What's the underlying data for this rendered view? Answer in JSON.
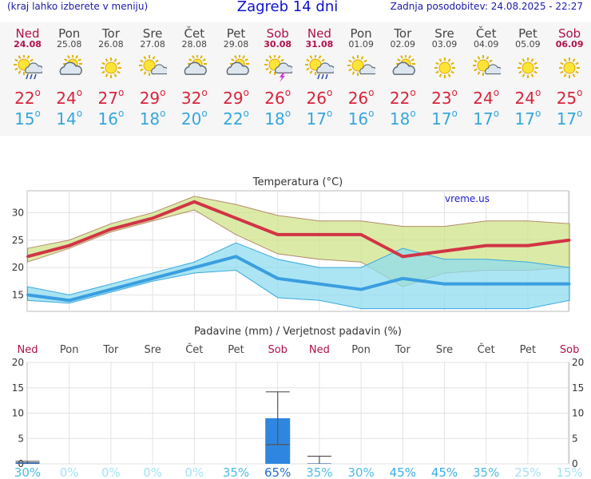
{
  "header": {
    "menu_hint": "(kraj lahko izberete v meniju)",
    "title": "Zagreb 14 dni",
    "updated": "Zadnja posodobitev: 24.08.2025 - 22:27"
  },
  "colors": {
    "max_line": "#d23446",
    "max_band": "#cfe48a",
    "min_line": "#3a9ee0",
    "min_band": "#8fdcef",
    "precip_bar": "#2f86e0",
    "weekend": "#b0104a"
  },
  "days": [
    {
      "name": "Ned",
      "date": "24.08",
      "weekend": true,
      "icon": "sun-cloud-rain-icon",
      "tmax": "22",
      "tmin": "15"
    },
    {
      "name": "Pon",
      "date": "25.08",
      "weekend": false,
      "icon": "cloud-sun-icon",
      "tmax": "24",
      "tmin": "14"
    },
    {
      "name": "Tor",
      "date": "26.08",
      "weekend": false,
      "icon": "sun-icon",
      "tmax": "27",
      "tmin": "16"
    },
    {
      "name": "Sre",
      "date": "27.08",
      "weekend": false,
      "icon": "sun-cloud-icon",
      "tmax": "29",
      "tmin": "18"
    },
    {
      "name": "Čet",
      "date": "28.08",
      "weekend": false,
      "icon": "cloud-sun-icon",
      "tmax": "32",
      "tmin": "20"
    },
    {
      "name": "Pet",
      "date": "29.08",
      "weekend": false,
      "icon": "cloud-sun-icon",
      "tmax": "29",
      "tmin": "22"
    },
    {
      "name": "Sob",
      "date": "30.08",
      "weekend": true,
      "icon": "sun-thunder-icon",
      "tmax": "26",
      "tmin": "18"
    },
    {
      "name": "Ned",
      "date": "31.08",
      "weekend": true,
      "icon": "sun-cloud-rain-icon",
      "tmax": "26",
      "tmin": "17"
    },
    {
      "name": "Pon",
      "date": "01.09",
      "weekend": false,
      "icon": "sun-cloud-icon",
      "tmax": "26",
      "tmin": "16"
    },
    {
      "name": "Tor",
      "date": "02.09",
      "weekend": false,
      "icon": "cloud-sun-icon",
      "tmax": "22",
      "tmin": "18"
    },
    {
      "name": "Sre",
      "date": "03.09",
      "weekend": false,
      "icon": "sun-icon",
      "tmax": "23",
      "tmin": "17"
    },
    {
      "name": "Čet",
      "date": "04.09",
      "weekend": false,
      "icon": "sun-cloud-icon",
      "tmax": "24",
      "tmin": "17"
    },
    {
      "name": "Pet",
      "date": "05.09",
      "weekend": false,
      "icon": "sun-icon",
      "tmax": "24",
      "tmin": "17"
    },
    {
      "name": "Sob",
      "date": "06.09",
      "weekend": true,
      "icon": "sun-icon",
      "tmax": "25",
      "tmin": "17"
    }
  ],
  "chart_data": [
    {
      "type": "line",
      "title": "Temperatura (°C)",
      "watermark": "vreme.us",
      "grid": true,
      "ylim": [
        12,
        34
      ],
      "yticks": [
        15,
        20,
        25,
        30
      ],
      "series": [
        {
          "name": "max",
          "values": [
            22,
            24,
            27,
            29,
            32,
            29,
            26,
            26,
            26,
            22,
            23,
            24,
            24,
            25
          ],
          "band_high": [
            23.5,
            25,
            28,
            30,
            33,
            31.5,
            29.5,
            28.5,
            28.5,
            27.5,
            27.5,
            28.5,
            28.5,
            28
          ],
          "band_low": [
            21,
            23.5,
            26.5,
            28.5,
            30.5,
            26,
            22.5,
            21.5,
            21,
            16.5,
            19,
            19.5,
            19.5,
            20
          ]
        },
        {
          "name": "min",
          "values": [
            15,
            14,
            16,
            18,
            20,
            22,
            18,
            17,
            16,
            18,
            17,
            17,
            17,
            17
          ],
          "band_high": [
            16.5,
            15,
            17,
            19,
            21,
            24.5,
            21.5,
            20,
            20,
            23.5,
            21.5,
            21.5,
            21,
            20
          ],
          "band_low": [
            14,
            13.5,
            15.5,
            17.5,
            19,
            19.5,
            14.5,
            14,
            12.5,
            12.5,
            12.5,
            12.5,
            12.5,
            14
          ]
        }
      ]
    },
    {
      "type": "bar",
      "title": "Padavine (mm) / Verjetnost padavin (%)",
      "categories": [
        "Ned",
        "Pon",
        "Tor",
        "Sre",
        "Čet",
        "Pet",
        "Sob",
        "Ned",
        "Pon",
        "Tor",
        "Sre",
        "Čet",
        "Pet",
        "Sob"
      ],
      "weekend": [
        true,
        false,
        false,
        false,
        false,
        false,
        true,
        true,
        false,
        false,
        false,
        false,
        false,
        true
      ],
      "ylim": [
        0,
        20
      ],
      "yticks": [
        0,
        5,
        10,
        15,
        20
      ],
      "values": [
        0.3,
        0,
        0,
        0,
        0,
        0,
        9,
        0.1,
        0,
        0,
        0,
        0,
        0,
        0
      ],
      "error_low": [
        0,
        null,
        null,
        null,
        null,
        null,
        3.8,
        0,
        null,
        null,
        null,
        null,
        null,
        null
      ],
      "error_high": [
        0.5,
        null,
        null,
        null,
        null,
        null,
        14.2,
        1.5,
        null,
        null,
        null,
        null,
        null,
        null
      ],
      "probability": [
        "30%",
        "0%",
        "0%",
        "0%",
        "0%",
        "35%",
        "65%",
        "35%",
        "30%",
        "45%",
        "45%",
        "35%",
        "25%",
        "15%"
      ],
      "probability_values": [
        30,
        0,
        0,
        0,
        0,
        35,
        65,
        35,
        30,
        45,
        45,
        35,
        25,
        15
      ]
    }
  ]
}
